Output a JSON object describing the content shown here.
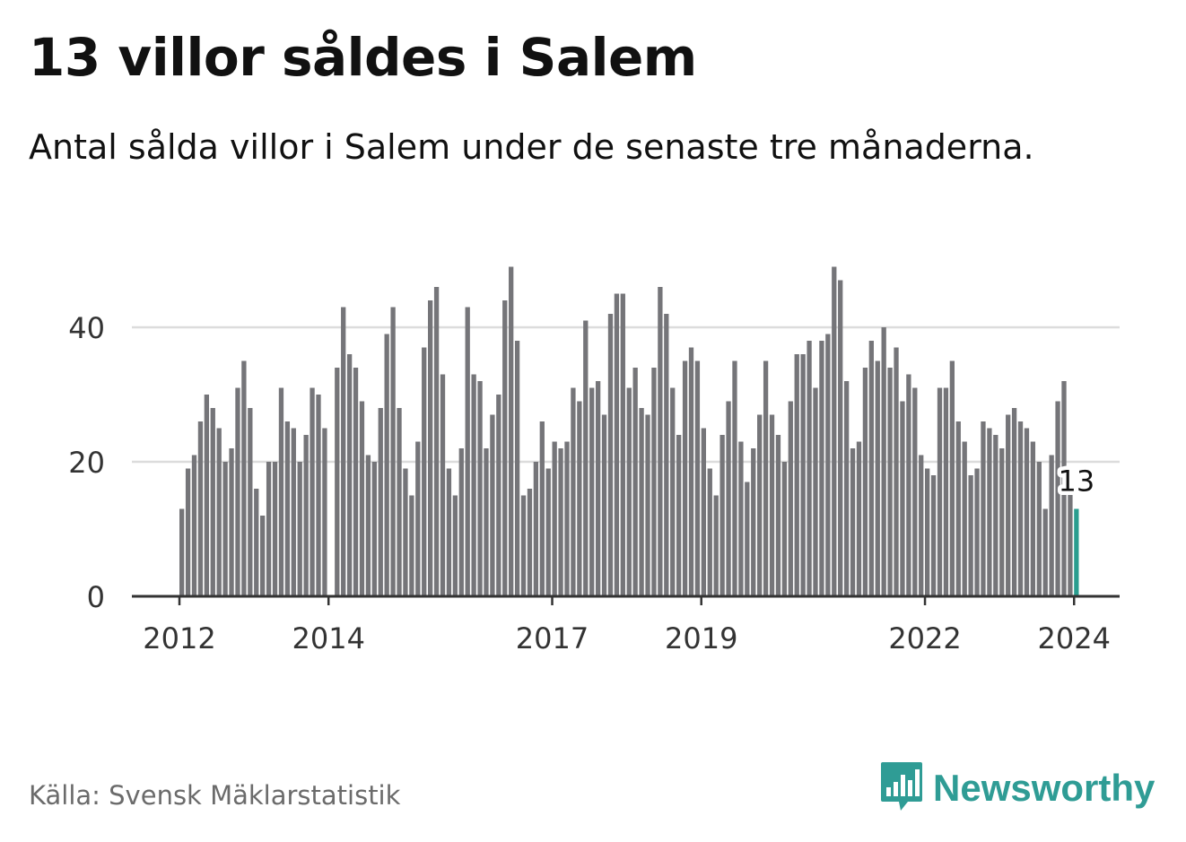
{
  "header": {
    "title": "13 villor såldes i Salem",
    "subtitle": "Antal sålda villor i Salem under de senaste tre månaderna."
  },
  "footer": {
    "source": "Källa: Svensk Mäklarstatistik",
    "brand": "Newsworthy"
  },
  "colors": {
    "bar": "#757579",
    "highlight": "#2a9d8f",
    "grid": "#dcdcdc",
    "axis": "#333333",
    "brand": "#2f9c95"
  },
  "chart_data": {
    "type": "bar",
    "title": "13 villor såldes i Salem",
    "xlabel": "",
    "ylabel": "",
    "ylim": [
      0,
      50
    ],
    "yticks": [
      0,
      20,
      40
    ],
    "grid": true,
    "x_start": 2012.0,
    "x_step": 0.08333,
    "x_ticks": [
      {
        "label": "2012",
        "x": 2012.0
      },
      {
        "label": "2014",
        "x": 2014.0
      },
      {
        "label": "2017",
        "x": 2017.0
      },
      {
        "label": "2019",
        "x": 2019.0
      },
      {
        "label": "2022",
        "x": 2022.0
      },
      {
        "label": "2024",
        "x": 2024.0
      }
    ],
    "values": [
      13,
      19,
      21,
      26,
      30,
      28,
      25,
      20,
      22,
      31,
      35,
      28,
      16,
      12,
      20,
      20,
      31,
      26,
      25,
      20,
      24,
      31,
      30,
      25,
      0,
      34,
      43,
      36,
      34,
      29,
      21,
      20,
      28,
      39,
      43,
      28,
      19,
      15,
      23,
      37,
      44,
      46,
      33,
      19,
      15,
      22,
      43,
      33,
      32,
      22,
      27,
      30,
      44,
      49,
      38,
      15,
      16,
      20,
      26,
      19,
      23,
      22,
      23,
      31,
      29,
      41,
      31,
      32,
      27,
      42,
      45,
      45,
      31,
      34,
      28,
      27,
      34,
      46,
      42,
      31,
      24,
      35,
      37,
      35,
      25,
      19,
      15,
      24,
      29,
      35,
      23,
      17,
      22,
      27,
      35,
      27,
      24,
      20,
      29,
      36,
      36,
      38,
      31,
      38,
      39,
      49,
      47,
      32,
      22,
      23,
      34,
      38,
      35,
      40,
      34,
      37,
      29,
      33,
      31,
      21,
      19,
      18,
      31,
      31,
      35,
      26,
      23,
      18,
      19,
      26,
      25,
      24,
      22,
      27,
      28,
      26,
      25,
      23,
      20,
      13,
      21,
      29,
      32,
      18,
      13
    ],
    "highlight_label": "13"
  }
}
